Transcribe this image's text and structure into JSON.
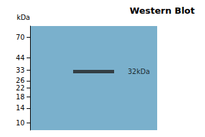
{
  "chart_data": {
    "type": "scatter",
    "title": "Western Blot",
    "ylabel": "kDa",
    "values": [
      32
    ],
    "annotation": "32kDa",
    "color": "#222222",
    "lane_color": "#7ab0cc",
    "ylim": [
      8.5,
      90
    ],
    "yticks": [
      70,
      44,
      33,
      26,
      22,
      18,
      14,
      10
    ],
    "log": "y",
    "grid": false,
    "tick_labels": "y"
  }
}
